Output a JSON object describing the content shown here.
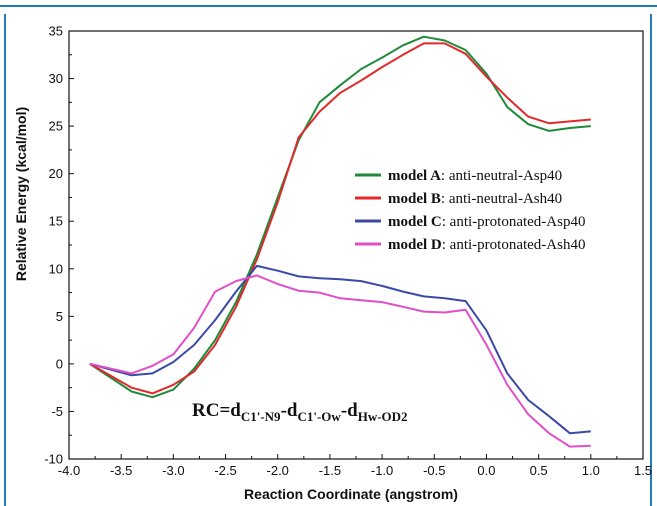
{
  "chart_data": {
    "type": "line",
    "title": "",
    "xlabel": "Reaction Coordinate (angstrom)",
    "ylabel": "Relative Energy (kcal/mol)",
    "xlim": [
      -4.0,
      1.5
    ],
    "ylim": [
      -10,
      35
    ],
    "x_ticks": [
      "-4.0",
      "-3.5",
      "-3.0",
      "-2.5",
      "-2.0",
      "-1.5",
      "-1.0",
      "-0.5",
      "0.0",
      "0.5",
      "1.0",
      "1.5"
    ],
    "y_ticks": [
      "-10",
      "-5",
      "0",
      "5",
      "10",
      "15",
      "20",
      "25",
      "30",
      "35"
    ],
    "grid": false,
    "legend_position": "center-right",
    "series": [
      {
        "id": "A",
        "name": "model A",
        "name_rest": ": anti-neutral-Asp40",
        "color": "#1e8a3a",
        "x": [
          -3.8,
          -3.4,
          -3.2,
          -3.0,
          -2.8,
          -2.6,
          -2.4,
          -2.2,
          -2.0,
          -1.8,
          -1.6,
          -1.4,
          -1.2,
          -1.0,
          -0.8,
          -0.6,
          -0.4,
          -0.2,
          0.0,
          0.2,
          0.4,
          0.6,
          0.8,
          1.0
        ],
        "y": [
          0.0,
          -2.9,
          -3.5,
          -2.7,
          -0.5,
          2.5,
          6.5,
          11.5,
          17.5,
          23.5,
          27.5,
          29.3,
          31.0,
          32.2,
          33.5,
          34.4,
          34.0,
          33.0,
          30.5,
          27.0,
          25.2,
          24.5,
          24.8,
          25.0
        ]
      },
      {
        "id": "B",
        "name": "model B",
        "name_rest": ": anti-neutral-Ash40",
        "color": "#e02a2a",
        "x": [
          -3.8,
          -3.4,
          -3.2,
          -3.0,
          -2.8,
          -2.6,
          -2.4,
          -2.2,
          -2.0,
          -1.8,
          -1.6,
          -1.4,
          -1.2,
          -1.0,
          -0.8,
          -0.6,
          -0.4,
          -0.2,
          0.0,
          0.2,
          0.4,
          0.6,
          0.8,
          1.0
        ],
        "y": [
          0.0,
          -2.5,
          -3.1,
          -2.2,
          -0.8,
          2.0,
          6.0,
          11.0,
          17.0,
          23.8,
          26.5,
          28.5,
          29.8,
          31.2,
          32.5,
          33.7,
          33.7,
          32.6,
          30.2,
          28.0,
          26.0,
          25.3,
          25.5,
          25.7
        ]
      },
      {
        "id": "C",
        "name": "model C",
        "name_rest": ": anti-protonated-Asp40",
        "color": "#3b4aa8",
        "x": [
          -3.8,
          -3.4,
          -3.2,
          -3.0,
          -2.8,
          -2.6,
          -2.4,
          -2.2,
          -2.0,
          -1.8,
          -1.6,
          -1.4,
          -1.2,
          -1.0,
          -0.8,
          -0.6,
          -0.4,
          -0.2,
          0.0,
          0.2,
          0.4,
          0.6,
          0.8,
          1.0
        ],
        "y": [
          0.0,
          -1.2,
          -1.0,
          0.2,
          2.0,
          4.6,
          7.6,
          10.3,
          9.8,
          9.2,
          9.0,
          8.9,
          8.7,
          8.2,
          7.6,
          7.1,
          6.9,
          6.6,
          3.5,
          -1.0,
          -3.8,
          -5.5,
          -7.3,
          -7.1
        ]
      },
      {
        "id": "D",
        "name": "model D",
        "name_rest": ": anti-protonated-Ash40",
        "color": "#e14fc8",
        "x": [
          -3.8,
          -3.4,
          -3.2,
          -3.0,
          -2.8,
          -2.6,
          -2.4,
          -2.2,
          -2.0,
          -1.8,
          -1.6,
          -1.4,
          -1.2,
          -1.0,
          -0.8,
          -0.6,
          -0.4,
          -0.2,
          0.0,
          0.2,
          0.4,
          0.6,
          0.8,
          1.0
        ],
        "y": [
          0.0,
          -1.0,
          -0.2,
          1.0,
          3.8,
          7.6,
          8.7,
          9.3,
          8.4,
          7.7,
          7.5,
          6.9,
          6.7,
          6.5,
          6.0,
          5.5,
          5.4,
          5.7,
          2.0,
          -2.2,
          -5.3,
          -7.3,
          -8.7,
          -8.6
        ]
      }
    ],
    "annotation": {
      "prefix": "RC=d",
      "sub1": "C1'-N9",
      "mid1": "-d",
      "sub2": "C1'-Ow",
      "mid2": "-d",
      "sub3": "Hw-OD2"
    }
  }
}
